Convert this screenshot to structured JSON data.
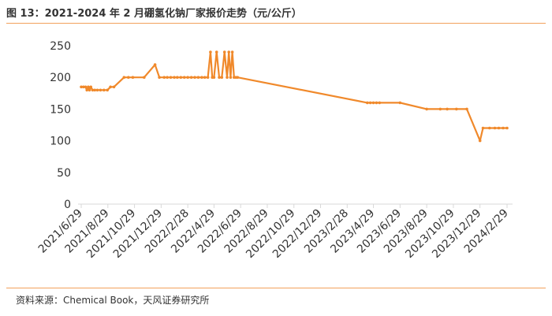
{
  "title": "图 13：2021-2024 年 2 月硼氢化钠厂家报价走势（元/公斤）",
  "source": "资料来源：Chemical Book，天风证券研究所",
  "colors": {
    "line": "#f0892b",
    "accent_rule": "#f2a05c",
    "axis": "#d9d9d9",
    "text": "#333333"
  },
  "chart_data": {
    "type": "line",
    "title": "图 13：2021-2024 年 2 月硼氢化钠厂家报价走势（元/公斤）",
    "xlabel": "",
    "ylabel": "",
    "ylim": [
      0,
      250
    ],
    "yticks": [
      0,
      50,
      100,
      150,
      200,
      250
    ],
    "xlim": [
      "2021-06-29",
      "2024-02-29"
    ],
    "xticks": [
      "2021/6/29",
      "2021/8/29",
      "2021/10/29",
      "2021/12/29",
      "2022/2/28",
      "2022/4/29",
      "2022/6/29",
      "2022/8/29",
      "2022/10/29",
      "2022/12/29",
      "2023/2/28",
      "2023/4/29",
      "2023/6/29",
      "2023/8/29",
      "2023/10/29",
      "2023/12/29",
      "2024/2/29"
    ],
    "grid": false,
    "series": [
      {
        "x": [
          "2021-06-29",
          "2021-07-04",
          "2021-07-09",
          "2021-07-12",
          "2021-07-15",
          "2021-07-18",
          "2021-07-21",
          "2021-07-25",
          "2021-07-30",
          "2021-08-05",
          "2021-08-12",
          "2021-08-20",
          "2021-08-28",
          "2021-09-04",
          "2021-09-12",
          "2021-10-05",
          "2021-10-15",
          "2021-10-25",
          "2021-11-20",
          "2021-12-15",
          "2021-12-25",
          "2022-01-05",
          "2022-01-12",
          "2022-01-20",
          "2022-01-28",
          "2022-02-04",
          "2022-02-12",
          "2022-02-20",
          "2022-02-28",
          "2022-03-08",
          "2022-03-16",
          "2022-03-24",
          "2022-04-01",
          "2022-04-08",
          "2022-04-15",
          "2022-04-21",
          "2022-04-25",
          "2022-04-29",
          "2022-05-05",
          "2022-05-11",
          "2022-05-17",
          "2022-05-23",
          "2022-05-29",
          "2022-06-02",
          "2022-06-06",
          "2022-06-10",
          "2022-06-14",
          "2022-06-18",
          "2022-06-22",
          "2023-04-15",
          "2023-04-22",
          "2023-04-29",
          "2023-05-06",
          "2023-05-13",
          "2023-06-29",
          "2023-08-29",
          "2023-09-29",
          "2023-10-15",
          "2023-11-05",
          "2023-11-29",
          "2023-12-29",
          "2024-01-05",
          "2024-01-20",
          "2024-02-01",
          "2024-02-10",
          "2024-02-20",
          "2024-02-29"
        ],
        "values": [
          185,
          185,
          185,
          180,
          185,
          180,
          185,
          180,
          180,
          180,
          180,
          180,
          180,
          185,
          185,
          200,
          200,
          200,
          200,
          220,
          200,
          200,
          200,
          200,
          200,
          200,
          200,
          200,
          200,
          200,
          200,
          200,
          200,
          200,
          200,
          240,
          200,
          200,
          240,
          200,
          200,
          240,
          200,
          240,
          200,
          240,
          200,
          200,
          200,
          160,
          160,
          160,
          160,
          160,
          160,
          150,
          150,
          150,
          150,
          150,
          100,
          120,
          120,
          120,
          120,
          120,
          120
        ]
      }
    ]
  }
}
